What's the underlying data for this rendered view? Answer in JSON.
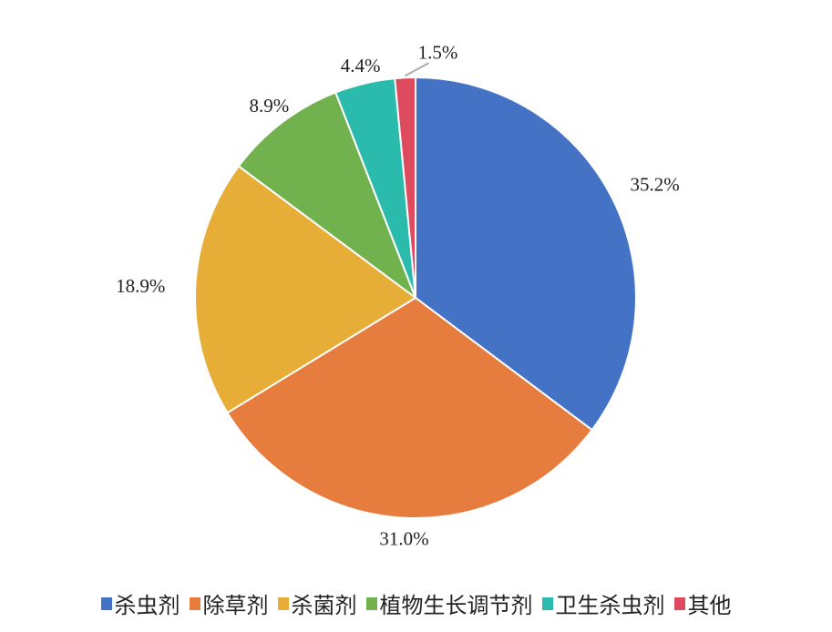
{
  "chart_data": {
    "type": "pie",
    "start_angle": "12 o'clock",
    "direction": "clockwise",
    "legend_placement": "bottom",
    "slices": [
      {
        "name": "杀虫剂",
        "value": 35.2,
        "label": "35.2%",
        "color": "#4472C4"
      },
      {
        "name": "除草剂",
        "value": 31.0,
        "label": "31.0%",
        "color": "#E67C3D"
      },
      {
        "name": "杀菌剂",
        "value": 18.9,
        "label": "18.9%",
        "color": "#E6AE36"
      },
      {
        "name": "植物生长调节剂",
        "value": 8.9,
        "label": "8.9%",
        "color": "#72B24E"
      },
      {
        "name": "卫生杀虫剂",
        "value": 4.4,
        "label": "4.4%",
        "color": "#2BBBAD"
      },
      {
        "name": "其他",
        "value": 1.5,
        "label": "1.5%",
        "color": "#DE4A5E"
      }
    ]
  }
}
